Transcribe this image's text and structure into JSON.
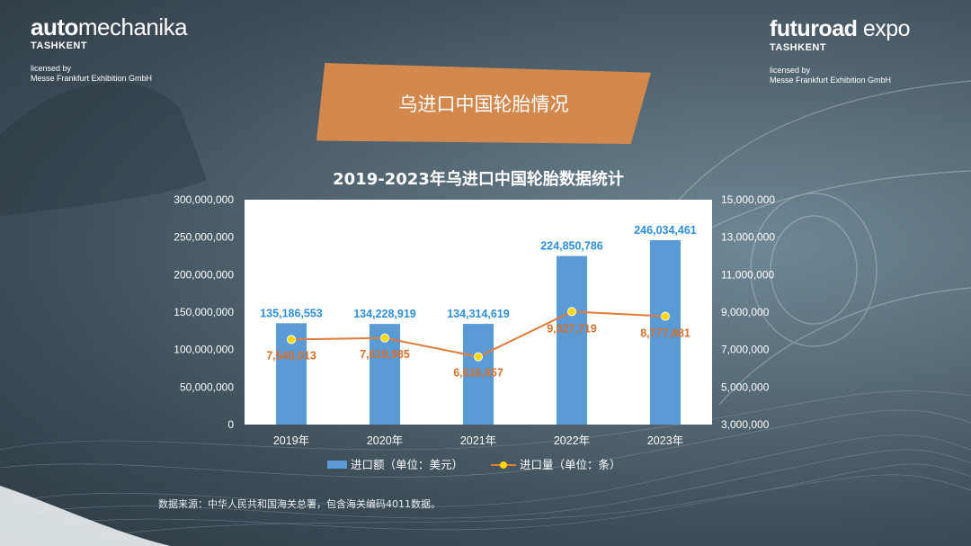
{
  "logos": {
    "left": {
      "brand_bold": "auto",
      "brand_light": "mechanika",
      "city": "TASHKENT",
      "license_line1": "licensed by",
      "license_line2": "Messe Frankfurt Exhibition GmbH"
    },
    "right": {
      "brand_bold": "futuroad",
      "brand_light": " expo",
      "city": "TASHKENT",
      "license_line1": "licensed by",
      "license_line2": "Messe Frankfurt Exhibition GmbH"
    }
  },
  "banner": {
    "title": "乌进口中国轮胎情况"
  },
  "source_note": "数据来源：中华人民共和国海关总署，包含海关编码4011数据。",
  "colors": {
    "bar": "#5b9bd5",
    "line": "#e07b39",
    "marker": "#ffd700",
    "bar_label": "#2f8fd8",
    "line_label": "#d5702e",
    "banner": "#d98a4c"
  },
  "chart_data": {
    "type": "bar",
    "title": "2019-2023年乌进口中国轮胎数据统计",
    "categories": [
      "2019年",
      "2020年",
      "2021年",
      "2022年",
      "2023年"
    ],
    "series": [
      {
        "name": "进口额（单位：美元）",
        "type": "bar",
        "axis": "left",
        "values": [
          135186553,
          134228919,
          134314619,
          224850786,
          246034461
        ],
        "labels": [
          "135,186,553",
          "134,228,919",
          "134,314,619",
          "224,850,786",
          "246,034,461"
        ]
      },
      {
        "name": "进口量（单位：条）",
        "type": "line",
        "axis": "right",
        "values": [
          7540013,
          7619985,
          6616657,
          9027719,
          8777881
        ],
        "labels": [
          "7,540,013",
          "7,619,985",
          "6,616,657",
          "9,027,719",
          "8,777,881"
        ]
      }
    ],
    "left_axis": {
      "ylim": [
        0,
        300000000
      ],
      "ticks": [
        0,
        50000000,
        100000000,
        150000000,
        200000000,
        250000000,
        300000000
      ],
      "tick_labels": [
        "0",
        "50,000,000",
        "100,000,000",
        "150,000,000",
        "200,000,000",
        "250,000,000",
        "300,000,000"
      ]
    },
    "right_axis": {
      "ylim": [
        3000000,
        15000000
      ],
      "ticks": [
        3000000,
        5000000,
        7000000,
        9000000,
        11000000,
        13000000,
        15000000
      ],
      "tick_labels": [
        "3,000,000",
        "5,000,000",
        "7,000,000",
        "9,000,000",
        "11,000,000",
        "13,000,000",
        "15,000,000"
      ]
    },
    "grid": false,
    "legend_position": "bottom"
  }
}
